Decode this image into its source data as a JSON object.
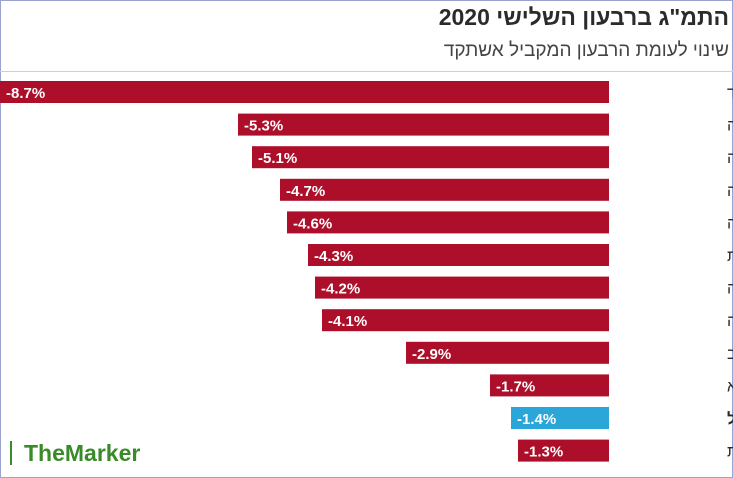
{
  "title": "התמ\"ג ברבעון השלישי 2020",
  "subtitle": "שינוי לעומת הרבעון המקביל אשתקד",
  "brand": {
    "name": "TheMarker"
  },
  "colors": {
    "bar": "#ad0f2a",
    "highlight": "#2aa6d9",
    "label_text": "#2b2b2b",
    "highlight_value_text": "#2aa6d9",
    "outside_value_text": "#ad0f2a"
  },
  "chart_data": {
    "type": "bar",
    "orientation": "horizontal",
    "title": "התמ\"ג ברבעון השלישי 2020",
    "subtitle": "שינוי לעומת הרבעון המקביל אשתקד",
    "unit": "%",
    "xlim": [
      -8.7,
      0
    ],
    "grid": false,
    "categories": [
      "ספרד",
      "אוסטריה",
      "בלגיה",
      "איטליה",
      "קנדה",
      "צרפת",
      "גרמניה",
      "שוודיה",
      "ארה\"ב",
      "ליטא",
      "ישראל",
      "קוריאה הדרומית"
    ],
    "values": [
      -8.7,
      -5.3,
      -5.1,
      -4.7,
      -4.6,
      -4.3,
      -4.2,
      -4.1,
      -2.9,
      -1.7,
      -1.4,
      -1.3
    ],
    "value_labels": [
      "-8.7%",
      "-5.3%",
      "-5.1%",
      "-4.7%",
      "-4.6%",
      "-4.3%",
      "-4.2%",
      "-4.1%",
      "-2.9%",
      "-1.7%",
      "-1.4%",
      "-1.3%"
    ],
    "highlight": "ישראל"
  }
}
